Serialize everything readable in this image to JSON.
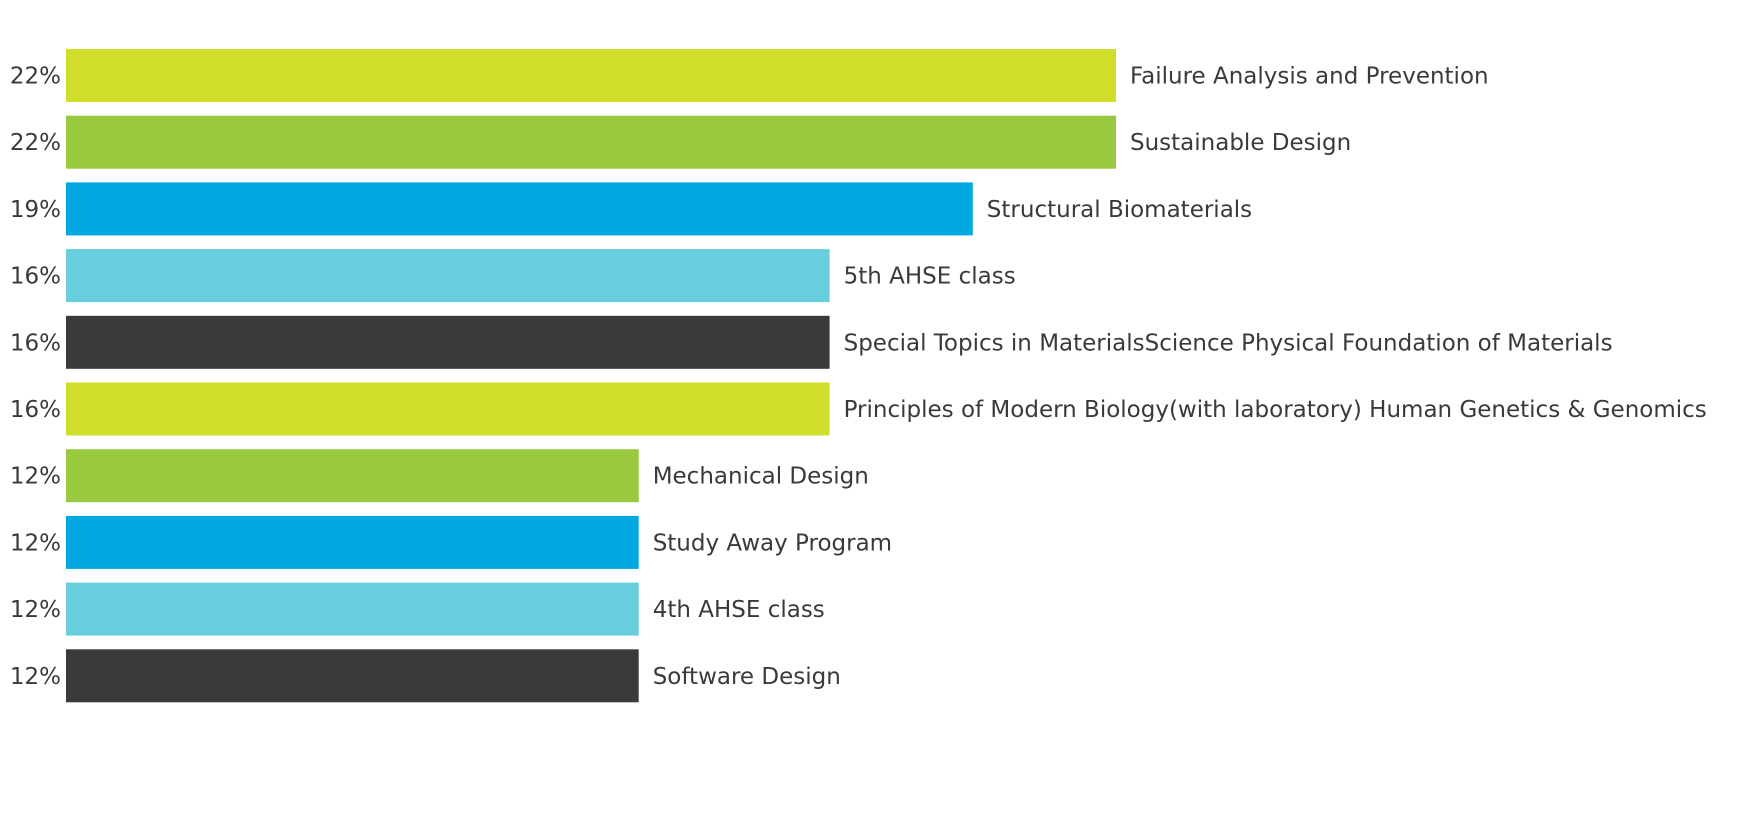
{
  "chart_data": {
    "type": "bar",
    "orientation": "horizontal",
    "categories": [
      "Failure Analysis and Prevention",
      "Sustainable Design",
      "Structural Biomaterials",
      "5th AHSE class",
      "Special Topics in MaterialsScience Physical Foundation of Materials",
      "Principles of Modern Biology(with laboratory) Human Genetics & Genomics",
      "Mechanical Design",
      "Study Away Program",
      "4th AHSE class",
      "Software Design"
    ],
    "values": [
      22,
      22,
      19,
      16,
      16,
      16,
      12,
      12,
      12,
      12
    ],
    "value_labels": [
      "22%",
      "22%",
      "19%",
      "16%",
      "16%",
      "16%",
      "12%",
      "12%",
      "12%",
      "12%"
    ],
    "colors": [
      "#d0de2a",
      "#99c93e",
      "#00a8df",
      "#68cddc",
      "#3a3a3c",
      "#d0de2a",
      "#99c93e",
      "#00a8df",
      "#68cddc",
      "#3a3a3c"
    ],
    "title": "",
    "xlabel": "",
    "ylabel": "",
    "grid": false,
    "legend": "none"
  }
}
